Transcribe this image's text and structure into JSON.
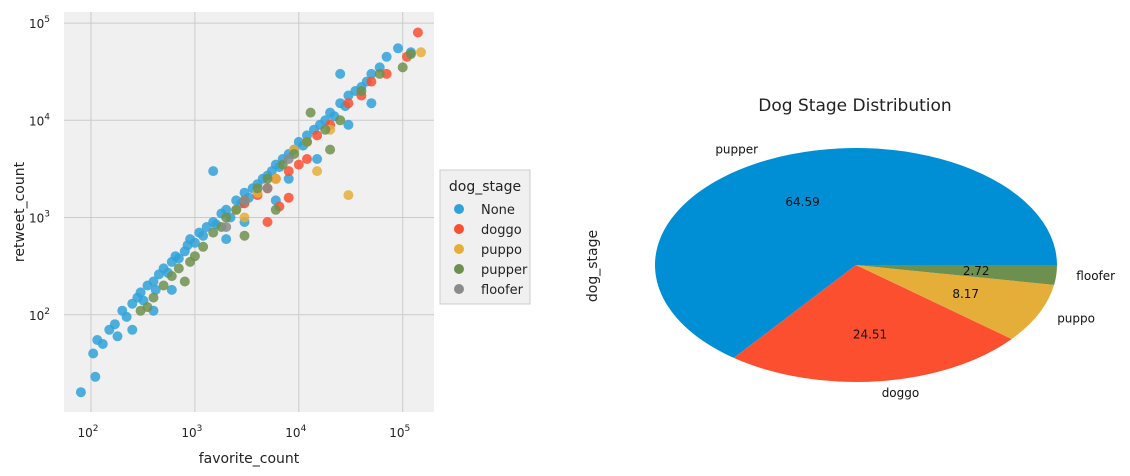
{
  "chart_data": [
    {
      "type": "scatter",
      "xlabel": "favorite_count",
      "ylabel": "retweet_count",
      "xscale": "log",
      "yscale": "log",
      "xlim": [
        55,
        200000
      ],
      "ylim": [
        10,
        130000
      ],
      "xticks": [
        {
          "value": 100,
          "base": "10",
          "exp": "2"
        },
        {
          "value": 1000,
          "base": "10",
          "exp": "3"
        },
        {
          "value": 10000,
          "base": "10",
          "exp": "4"
        },
        {
          "value": 100000,
          "base": "10",
          "exp": "5"
        }
      ],
      "yticks": [
        {
          "value": 100,
          "base": "10",
          "exp": "2"
        },
        {
          "value": 1000,
          "base": "10",
          "exp": "3"
        },
        {
          "value": 10000,
          "base": "10",
          "exp": "4"
        },
        {
          "value": 100000,
          "base": "10",
          "exp": "5"
        }
      ],
      "grid": true,
      "legend": {
        "title": "dog_stage",
        "placement": "outside-right"
      },
      "series": [
        {
          "name": "None",
          "color": "#30a2da",
          "points": [
            [
              80,
              16
            ],
            [
              110,
              23
            ],
            [
              105,
              40
            ],
            [
              115,
              55
            ],
            [
              130,
              50
            ],
            [
              150,
              70
            ],
            [
              170,
              80
            ],
            [
              180,
              60
            ],
            [
              200,
              110
            ],
            [
              220,
              95
            ],
            [
              250,
              130
            ],
            [
              280,
              150
            ],
            [
              300,
              170
            ],
            [
              320,
              140
            ],
            [
              350,
              200
            ],
            [
              400,
              220
            ],
            [
              420,
              180
            ],
            [
              450,
              260
            ],
            [
              500,
              300
            ],
            [
              550,
              270
            ],
            [
              600,
              350
            ],
            [
              650,
              400
            ],
            [
              700,
              380
            ],
            [
              800,
              450
            ],
            [
              850,
              520
            ],
            [
              900,
              600
            ],
            [
              1000,
              550
            ],
            [
              1100,
              700
            ],
            [
              1200,
              650
            ],
            [
              1300,
              800
            ],
            [
              1500,
              900
            ],
            [
              1600,
              850
            ],
            [
              1800,
              1100
            ],
            [
              2000,
              1200
            ],
            [
              2200,
              1000
            ],
            [
              2500,
              1500
            ],
            [
              2800,
              1400
            ],
            [
              3000,
              1800
            ],
            [
              3300,
              1600
            ],
            [
              3600,
              2000
            ],
            [
              4000,
              2200
            ],
            [
              4500,
              2500
            ],
            [
              5000,
              2700
            ],
            [
              5500,
              3000
            ],
            [
              6000,
              3500
            ],
            [
              6500,
              3300
            ],
            [
              7000,
              4000
            ],
            [
              8000,
              4500
            ],
            [
              9000,
              5000
            ],
            [
              10000,
              6000
            ],
            [
              11000,
              5500
            ],
            [
              12000,
              7000
            ],
            [
              14000,
              8000
            ],
            [
              16000,
              9000
            ],
            [
              18000,
              10000
            ],
            [
              20000,
              12000
            ],
            [
              22000,
              11000
            ],
            [
              25000,
              15000
            ],
            [
              28000,
              14000
            ],
            [
              30000,
              18000
            ],
            [
              35000,
              20000
            ],
            [
              40000,
              22000
            ],
            [
              45000,
              25000
            ],
            [
              50000,
              30000
            ],
            [
              60000,
              35000
            ],
            [
              70000,
              45000
            ],
            [
              90000,
              55000
            ],
            [
              120000,
              50000
            ],
            [
              600,
              180
            ],
            [
              2000,
              600
            ],
            [
              6000,
              1500
            ],
            [
              15000,
              4000
            ],
            [
              30000,
              9000
            ],
            [
              1500,
              3000
            ],
            [
              400,
              110
            ],
            [
              250,
              70
            ],
            [
              3000,
              900
            ],
            [
              8000,
              2500
            ],
            [
              50000,
              15000
            ],
            [
              25000,
              30000
            ]
          ]
        },
        {
          "name": "doggo",
          "color": "#fc4f30",
          "points": [
            [
              140000,
              80000
            ],
            [
              110000,
              45000
            ],
            [
              70000,
              30000
            ],
            [
              50000,
              25000
            ],
            [
              40000,
              18000
            ],
            [
              30000,
              15000
            ],
            [
              20000,
              9000
            ],
            [
              15000,
              7000
            ],
            [
              12000,
              4000
            ],
            [
              10000,
              3500
            ],
            [
              8000,
              3000
            ],
            [
              6000,
              2500
            ],
            [
              5000,
              2000
            ],
            [
              4000,
              1700
            ],
            [
              3000,
              1400
            ],
            [
              8000,
              1600
            ],
            [
              6500,
              1300
            ],
            [
              5000,
              900
            ]
          ]
        },
        {
          "name": "puppo",
          "color": "#e5ae38",
          "points": [
            [
              150000,
              50000
            ],
            [
              30000,
              1700
            ],
            [
              20000,
              8000
            ],
            [
              12000,
              6000
            ],
            [
              9000,
              5000
            ],
            [
              6000,
              2500
            ],
            [
              4000,
              1800
            ],
            [
              2500,
              1200
            ],
            [
              3000,
              1000
            ],
            [
              15000,
              3000
            ]
          ]
        },
        {
          "name": "pupper",
          "color": "#6d904f",
          "points": [
            [
              120000,
              48000
            ],
            [
              100000,
              35000
            ],
            [
              60000,
              30000
            ],
            [
              40000,
              20000
            ],
            [
              13000,
              12000
            ],
            [
              25000,
              10000
            ],
            [
              18000,
              8000
            ],
            [
              12000,
              6000
            ],
            [
              9000,
              4500
            ],
            [
              7000,
              3500
            ],
            [
              5000,
              2500
            ],
            [
              4000,
              2000
            ],
            [
              3000,
              1500
            ],
            [
              2500,
              1200
            ],
            [
              2000,
              1000
            ],
            [
              1800,
              800
            ],
            [
              1500,
              700
            ],
            [
              1200,
              500
            ],
            [
              1000,
              400
            ],
            [
              900,
              350
            ],
            [
              700,
              300
            ],
            [
              600,
              250
            ],
            [
              500,
              200
            ],
            [
              400,
              150
            ],
            [
              350,
              120
            ],
            [
              300,
              110
            ],
            [
              800,
              220
            ],
            [
              3000,
              650
            ],
            [
              6000,
              1200
            ],
            [
              20000,
              5000
            ]
          ]
        },
        {
          "name": "floofer",
          "color": "#8b8b8b",
          "points": [
            [
              5000,
              2000
            ],
            [
              3000,
              1500
            ],
            [
              8000,
              4000
            ],
            [
              2000,
              800
            ]
          ]
        }
      ]
    },
    {
      "type": "pie",
      "title": "Dog Stage Distribution",
      "ylabel": "dog_stage",
      "slices": [
        {
          "label": "pupper",
          "value": 64.59,
          "pct_label": "64.59",
          "color": "#008fd5"
        },
        {
          "label": "doggo",
          "value": 24.51,
          "pct_label": "24.51",
          "color": "#fc4f30"
        },
        {
          "label": "puppo",
          "value": 8.17,
          "pct_label": "8.17",
          "color": "#e5ae38"
        },
        {
          "label": "floofer",
          "value": 2.72,
          "pct_label": "2.72",
          "color": "#6d904f"
        }
      ]
    }
  ]
}
